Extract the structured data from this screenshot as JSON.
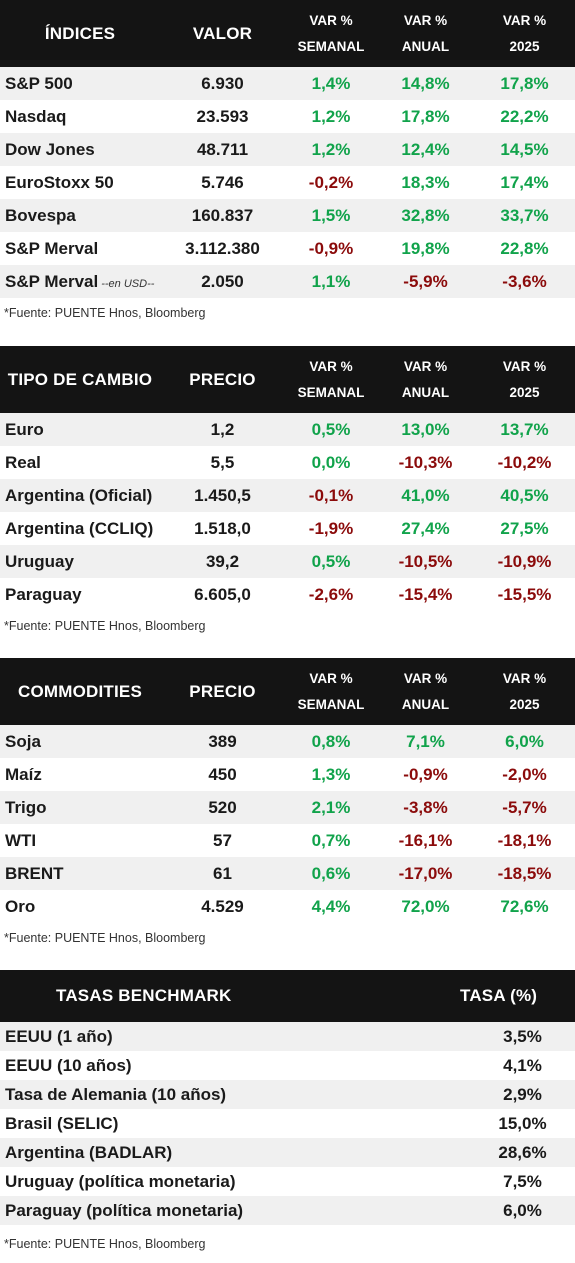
{
  "indices": {
    "headers": {
      "c1": "ÍNDICES",
      "c2": "VALOR",
      "c3a": "VAR %",
      "c3b": "SEMANAL",
      "c4a": "VAR %",
      "c4b": "ANUAL",
      "c5a": "VAR %",
      "c5b": "2025"
    },
    "rows": [
      {
        "name": "S&P 500",
        "value": "6.930",
        "weekly": "1,4%",
        "annual": "14,8%",
        "ytd": "17,8%"
      },
      {
        "name": "Nasdaq",
        "value": "23.593",
        "weekly": "1,2%",
        "annual": "17,8%",
        "ytd": "22,2%"
      },
      {
        "name": "Dow Jones",
        "value": "48.711",
        "weekly": "1,2%",
        "annual": "12,4%",
        "ytd": "14,5%"
      },
      {
        "name": "EuroStoxx 50",
        "value": "5.746",
        "weekly": "-0,2%",
        "annual": "18,3%",
        "ytd": "17,4%"
      },
      {
        "name": "Bovespa",
        "value": "160.837",
        "weekly": "1,5%",
        "annual": "32,8%",
        "ytd": "33,7%"
      },
      {
        "name": "S&P Merval",
        "value": "3.112.380",
        "weekly": "-0,9%",
        "annual": "19,8%",
        "ytd": "22,8%"
      },
      {
        "name": "S&P Merval",
        "suffix": "--en USD--",
        "value": "2.050",
        "weekly": "1,1%",
        "annual": "-5,9%",
        "ytd": "-3,6%"
      }
    ],
    "source": "*Fuente: PUENTE Hnos, Bloomberg"
  },
  "fx": {
    "headers": {
      "c1": "TIPO DE CAMBIO",
      "c2": "PRECIO",
      "c3a": "VAR %",
      "c3b": "SEMANAL",
      "c4a": "VAR %",
      "c4b": "ANUAL",
      "c5a": "VAR %",
      "c5b": "2025"
    },
    "rows": [
      {
        "name": "Euro",
        "value": "1,2",
        "weekly": "0,5%",
        "annual": "13,0%",
        "ytd": "13,7%"
      },
      {
        "name": "Real",
        "value": "5,5",
        "weekly": "0,0%",
        "annual": "-10,3%",
        "ytd": "-10,2%"
      },
      {
        "name": "Argentina (Oficial)",
        "value": "1.450,5",
        "weekly": "-0,1%",
        "annual": "41,0%",
        "ytd": "40,5%"
      },
      {
        "name": "Argentina (CCLIQ)",
        "value": "1.518,0",
        "weekly": "-1,9%",
        "annual": "27,4%",
        "ytd": "27,5%"
      },
      {
        "name": "Uruguay",
        "value": "39,2",
        "weekly": "0,5%",
        "annual": "-10,5%",
        "ytd": "-10,9%"
      },
      {
        "name": "Paraguay",
        "value": "6.605,0",
        "weekly": "-2,6%",
        "annual": "-15,4%",
        "ytd": "-15,5%"
      }
    ],
    "source": "*Fuente: PUENTE Hnos, Bloomberg"
  },
  "commodities": {
    "headers": {
      "c1": "COMMODITIES",
      "c2": "PRECIO",
      "c3a": "VAR %",
      "c3b": "SEMANAL",
      "c4a": "VAR %",
      "c4b": "ANUAL",
      "c5a": "VAR %",
      "c5b": "2025"
    },
    "rows": [
      {
        "name": "Soja",
        "value": "389",
        "weekly": "0,8%",
        "annual": "7,1%",
        "ytd": "6,0%"
      },
      {
        "name": "Maíz",
        "value": "450",
        "weekly": "1,3%",
        "annual": "-0,9%",
        "ytd": "-2,0%"
      },
      {
        "name": "Trigo",
        "value": "520",
        "weekly": "2,1%",
        "annual": "-3,8%",
        "ytd": "-5,7%"
      },
      {
        "name": "WTI",
        "value": "57",
        "weekly": "0,7%",
        "annual": "-16,1%",
        "ytd": "-18,1%"
      },
      {
        "name": "BRENT",
        "value": "61",
        "weekly": "0,6%",
        "annual": "-17,0%",
        "ytd": "-18,5%"
      },
      {
        "name": "Oro",
        "value": "4.529",
        "weekly": "4,4%",
        "annual": "72,0%",
        "ytd": "72,6%"
      }
    ],
    "source": "*Fuente: PUENTE Hnos, Bloomberg"
  },
  "rates": {
    "headers": {
      "c1": "TASAS BENCHMARK",
      "c2": "TASA (%)"
    },
    "rows": [
      {
        "name": "EEUU (1 año)",
        "value": "3,5%"
      },
      {
        "name": "EEUU (10 años)",
        "value": "4,1%"
      },
      {
        "name": "Tasa de Alemania (10 años)",
        "value": "2,9%"
      },
      {
        "name": "Brasil (SELIC)",
        "value": "15,0%"
      },
      {
        "name": "Argentina (BADLAR)",
        "value": "28,6%"
      },
      {
        "name": "Uruguay (política monetaria)",
        "value": "7,5%"
      },
      {
        "name": "Paraguay (política monetaria)",
        "value": "6,0%"
      }
    ],
    "source": "*Fuente: PUENTE Hnos, Bloomberg"
  },
  "colors": {
    "positive": "#11a34b",
    "negative": "#8b0b0b",
    "header_bg": "#141414",
    "row_alt": "#f0f0f0"
  }
}
